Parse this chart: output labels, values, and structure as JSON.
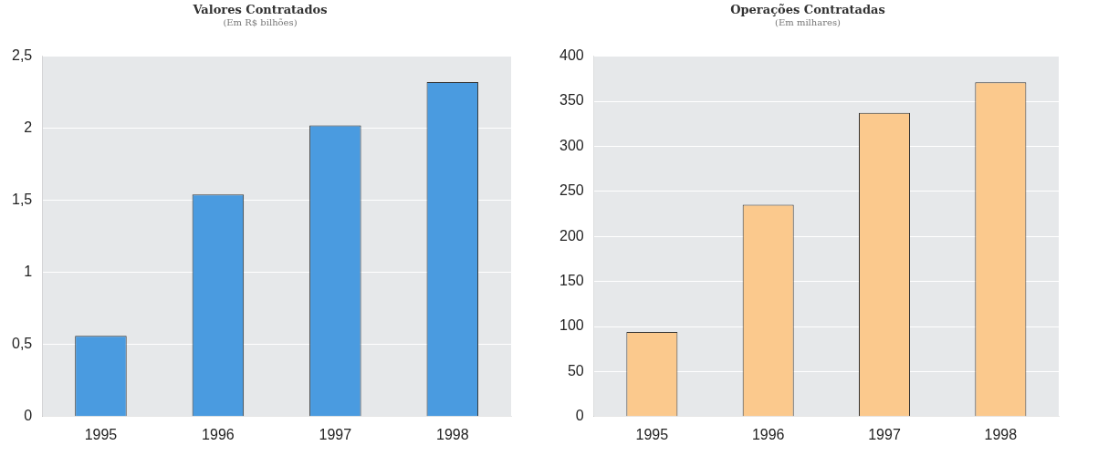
{
  "chart_data": [
    {
      "type": "bar",
      "title": "Valores Contratados",
      "subtitle": "(Em R$ bilhões)",
      "categories": [
        "1995",
        "1996",
        "1997",
        "1998"
      ],
      "values": [
        0.56,
        1.54,
        2.02,
        2.32
      ],
      "color": "#4a9be0",
      "ylim": [
        0,
        2.5
      ],
      "yticks": [
        {
          "value": 0,
          "label": "0"
        },
        {
          "value": 0.5,
          "label": "0,5"
        },
        {
          "value": 1,
          "label": "1"
        },
        {
          "value": 1.5,
          "label": "1,5"
        },
        {
          "value": 2,
          "label": "2"
        },
        {
          "value": 2.5,
          "label": "2,5"
        }
      ],
      "grid": "y"
    },
    {
      "type": "bar",
      "title": "Operações Contratadas",
      "subtitle": "(Em milhares)",
      "categories": [
        "1995",
        "1996",
        "1997",
        "1998"
      ],
      "values": [
        94,
        235,
        337,
        371
      ],
      "color": "#fbc98d",
      "ylim": [
        0,
        400
      ],
      "yticks": [
        0,
        50,
        100,
        150,
        200,
        250,
        300,
        350,
        400
      ],
      "grid": "y"
    }
  ]
}
